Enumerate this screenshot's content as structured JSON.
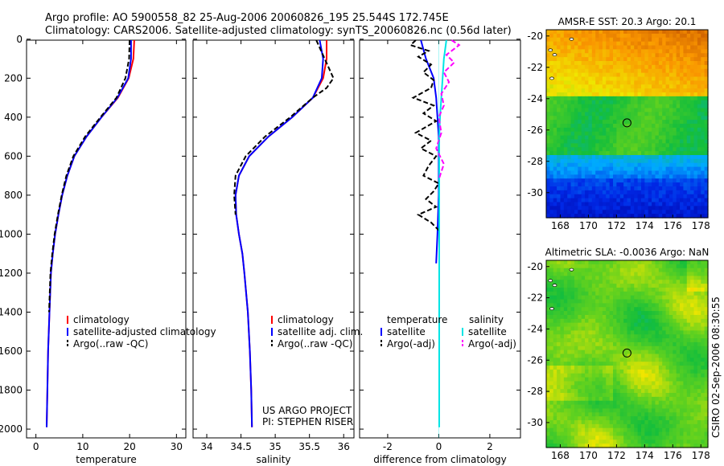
{
  "header": {
    "line1": "Argo profile: AO 5900558_82 25-Aug-2006 20060826_195 25.544S 172.745E",
    "line2": "Climatology: CARS2006. Satellite-adjusted climatology: synTS_20060826.nc (0.56d later)"
  },
  "side_stamp": "CSIRO 02-Sep-2006 08:30:55",
  "colors": {
    "climatology": "#ff0000",
    "satellite": "#0000ff",
    "argo": "#000000",
    "sal_satellite": "#00e5e5",
    "sal_argo": "#ff00ff"
  },
  "chart_data": [
    {
      "type": "line",
      "id": "temperature",
      "xlabel": "temperature",
      "ylabel": "",
      "xlim": [
        -2,
        32
      ],
      "ylim": [
        2050,
        0
      ],
      "xticks": [
        "0",
        "10",
        "20",
        "30"
      ],
      "yticks": [
        "0",
        "200",
        "400",
        "600",
        "800",
        "1000",
        "1200",
        "1400",
        "1600",
        "1800",
        "2000"
      ],
      "legend": [
        "climatology",
        "satellite-adjusted climatology",
        "Argo(..raw -QC)"
      ],
      "series": [
        {
          "name": "climatology",
          "color": "#ff0000",
          "x": [
            21.0,
            20.8,
            19.8,
            17.5,
            14.0,
            10.8,
            8.2,
            6.7,
            5.6,
            4.8,
            4.1,
            3.6,
            3.2,
            2.9,
            2.6,
            2.45,
            2.3
          ],
          "y": [
            5,
            100,
            200,
            300,
            400,
            500,
            600,
            700,
            800,
            900,
            1000,
            1100,
            1200,
            1400,
            1600,
            1800,
            1990
          ]
        },
        {
          "name": "satellite-adjusted climatology",
          "color": "#0000ff",
          "x": [
            20.3,
            20.3,
            19.7,
            17.4,
            14.0,
            10.8,
            8.2,
            6.7,
            5.6,
            4.8,
            4.1,
            3.6,
            3.2,
            2.9,
            2.6,
            2.45,
            2.3
          ],
          "y": [
            5,
            100,
            200,
            300,
            400,
            500,
            600,
            700,
            800,
            900,
            1000,
            1100,
            1200,
            1400,
            1600,
            1800,
            1990
          ]
        },
        {
          "name": "Argo(..raw -QC)",
          "color": "#000000",
          "x": [
            20.0,
            19.9,
            19.1,
            17.2,
            13.8,
            10.5,
            8.0,
            6.5,
            5.5,
            4.7,
            4.0,
            3.5,
            3.1,
            2.8
          ],
          "y": [
            5,
            100,
            200,
            300,
            400,
            500,
            600,
            700,
            800,
            900,
            1000,
            1100,
            1200,
            1400
          ]
        }
      ]
    },
    {
      "type": "line",
      "id": "salinity",
      "xlabel": "salinity",
      "ylabel": "",
      "xlim": [
        33.8,
        36.15
      ],
      "ylim": [
        2050,
        0
      ],
      "xticks": [
        "34",
        "34.5",
        "35",
        "35.5",
        "36"
      ],
      "yticks": [],
      "legend": [
        "climatology",
        "satellite adj. clim.",
        "Argo(..raw -QC)"
      ],
      "annotation": [
        "US ARGO PROJECT",
        "PI: STEPHEN RISER"
      ],
      "series": [
        {
          "name": "climatology",
          "color": "#ff0000",
          "x": [
            35.75,
            35.75,
            35.7,
            35.55,
            35.25,
            34.9,
            34.62,
            34.47,
            34.42,
            34.43,
            34.47,
            34.52,
            34.55,
            34.6,
            34.63,
            34.65,
            34.66
          ],
          "y": [
            5,
            100,
            200,
            300,
            400,
            500,
            600,
            700,
            800,
            900,
            1000,
            1100,
            1200,
            1400,
            1600,
            1800,
            1990
          ]
        },
        {
          "name": "satellite adj. clim.",
          "color": "#0000ff",
          "x": [
            35.65,
            35.7,
            35.68,
            35.55,
            35.25,
            34.9,
            34.62,
            34.47,
            34.42,
            34.43,
            34.47,
            34.52,
            34.55,
            34.6,
            34.63,
            34.65,
            34.66
          ],
          "y": [
            5,
            100,
            200,
            300,
            400,
            500,
            600,
            700,
            800,
            900,
            1000,
            1100,
            1200,
            1400,
            1600,
            1800,
            1990
          ]
        },
        {
          "name": "Argo(..raw -QC)",
          "color": "#000000",
          "x": [
            35.6,
            35.85,
            35.75,
            35.55,
            35.22,
            34.85,
            34.57,
            34.42,
            34.4,
            34.42
          ],
          "y": [
            5,
            200,
            250,
            300,
            400,
            500,
            600,
            700,
            800,
            900
          ]
        }
      ]
    },
    {
      "type": "line",
      "id": "difference",
      "xlabel": "difference from climatology",
      "ylabel": "",
      "xlim": [
        -3.1,
        3.2
      ],
      "ylim": [
        2050,
        0
      ],
      "xticks": [
        "-2",
        "0",
        "2"
      ],
      "yticks": [],
      "legend_titles": [
        "temperature",
        "salinity"
      ],
      "legend": [
        "satellite",
        "Argo(-adj)",
        "satellite",
        "Argo(-adj)"
      ],
      "series": [
        {
          "name": "temperature satellite",
          "color": "#0000ff",
          "x": [
            -0.7,
            -0.5,
            -0.2,
            -0.1,
            -0.05,
            0.0,
            0.0,
            0.0,
            -0.05,
            -0.1
          ],
          "y": [
            5,
            100,
            200,
            300,
            400,
            500,
            600,
            800,
            1000,
            1150
          ]
        },
        {
          "name": "temperature Argo(-adj)",
          "color": "#000000",
          "x": [
            -0.9,
            -1.1,
            -0.4,
            -0.8,
            -0.3,
            -0.6,
            -0.2,
            -0.3,
            -1.0,
            -0.2,
            -0.6,
            -0.1,
            -0.9,
            -0.3,
            -0.7,
            -0.1,
            -0.4,
            -0.6,
            0.0,
            -0.2,
            -0.5,
            -0.1,
            -0.8,
            -0.3,
            0.0
          ],
          "y": [
            5,
            30,
            60,
            90,
            130,
            170,
            210,
            250,
            300,
            340,
            380,
            420,
            480,
            520,
            560,
            600,
            650,
            700,
            740,
            780,
            820,
            860,
            900,
            940,
            980
          ]
        },
        {
          "name": "salinity satellite",
          "color": "#00e5e5",
          "x": [
            0.3,
            0.2,
            0.15,
            0.1,
            0.05,
            0.02,
            0.02,
            0.02,
            0.02,
            0.02,
            0.02
          ],
          "y": [
            5,
            100,
            200,
            300,
            400,
            500,
            600,
            800,
            1200,
            1600,
            1990
          ]
        },
        {
          "name": "salinity Argo(-adj)",
          "color": "#ff00ff",
          "x": [
            0.5,
            0.8,
            0.3,
            0.6,
            0.2,
            0.4,
            0.1,
            0.2,
            0.0,
            0.1,
            -0.1,
            0.2,
            0.0
          ],
          "y": [
            5,
            30,
            80,
            120,
            170,
            220,
            280,
            340,
            400,
            480,
            560,
            640,
            720
          ]
        }
      ]
    },
    {
      "type": "heatmap",
      "id": "sst_map",
      "title": "AMSR-E SST: 20.3  Argo: 20.1",
      "xlim": [
        167,
        178.5
      ],
      "ylim": [
        -31.6,
        -19.6
      ],
      "xticks": [
        "168",
        "170",
        "172",
        "174",
        "176",
        "178"
      ],
      "yticks": [
        "-20",
        "-22",
        "-24",
        "-26",
        "-28",
        "-30"
      ],
      "profile_marker": {
        "lon": 172.745,
        "lat": -25.544
      }
    },
    {
      "type": "heatmap",
      "id": "sla_map",
      "title": "Altimetric SLA: -0.0036  Argo: NaN",
      "xlim": [
        167,
        178.5
      ],
      "ylim": [
        -31.6,
        -19.6
      ],
      "xticks": [
        "168",
        "170",
        "172",
        "174",
        "176",
        "178"
      ],
      "yticks": [
        "-20",
        "-22",
        "-24",
        "-26",
        "-28",
        "-30"
      ],
      "profile_marker": {
        "lon": 172.745,
        "lat": -25.544
      }
    }
  ]
}
